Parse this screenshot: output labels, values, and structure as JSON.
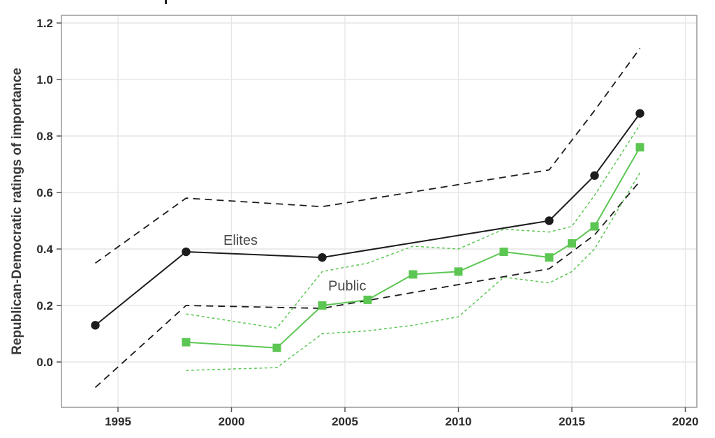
{
  "chart_data": {
    "type": "line",
    "title": "",
    "xlabel": "",
    "ylabel": "Republican-Democratic ratings of importance",
    "xlim": [
      1992.5,
      2020.5
    ],
    "ylim": [
      -0.163,
      1.227
    ],
    "grid": "on",
    "legend": "inline-labels",
    "xticks": [
      {
        "v": 1995,
        "label": "1995"
      },
      {
        "v": 2000,
        "label": "2000"
      },
      {
        "v": 2005,
        "label": "2005"
      },
      {
        "v": 2010,
        "label": "2010"
      },
      {
        "v": 2015,
        "label": "2015"
      },
      {
        "v": 2020,
        "label": "2020"
      }
    ],
    "yticks": [
      {
        "v": 0.0,
        "label": "0.0"
      },
      {
        "v": 0.2,
        "label": "0.2"
      },
      {
        "v": 0.4,
        "label": "0.4"
      },
      {
        "v": 0.6,
        "label": "0.6"
      },
      {
        "v": 0.8,
        "label": "0.8"
      },
      {
        "v": 1.0,
        "label": "1.0"
      },
      {
        "v": 1.2,
        "label": "1.2"
      }
    ],
    "colors": {
      "elites": "#1c1c1c",
      "public": "#5cc653",
      "grid": "#e6e6e6",
      "frame": "#999999",
      "tick": "#555555",
      "tick_label": "#2a2a2a",
      "annotation": "#4a4a4a"
    },
    "series": [
      {
        "id": "elites",
        "name": "Elites",
        "role": "mean",
        "marker": "circle",
        "dash": "solid",
        "width": 2,
        "color": "#1c1c1c",
        "x": [
          1994,
          1998,
          2004,
          2014,
          2016,
          2018
        ],
        "y": [
          0.13,
          0.39,
          0.37,
          0.5,
          0.66,
          0.88
        ]
      },
      {
        "id": "elites-upper-ci",
        "name": "Elites upper confidence band",
        "role": "ci",
        "marker": "none",
        "dash": "10 7",
        "width": 1.8,
        "color": "#1c1c1c",
        "x": [
          1994,
          1998,
          2004,
          2014,
          2016,
          2018
        ],
        "y": [
          0.35,
          0.58,
          0.55,
          0.68,
          0.89,
          1.11
        ]
      },
      {
        "id": "elites-lower-ci",
        "name": "Elites lower confidence band",
        "role": "ci",
        "marker": "none",
        "dash": "10 7",
        "width": 1.8,
        "color": "#1c1c1c",
        "x": [
          1994,
          1998,
          2004,
          2014,
          2016,
          2018
        ],
        "y": [
          -0.09,
          0.2,
          0.19,
          0.33,
          0.45,
          0.64
        ]
      },
      {
        "id": "public",
        "name": "Public",
        "role": "mean",
        "marker": "square",
        "dash": "solid",
        "width": 2,
        "color": "#5cc653",
        "x": [
          1998,
          2002,
          2004,
          2006,
          2008,
          2010,
          2012,
          2014,
          2015,
          2016,
          2018
        ],
        "y": [
          0.07,
          0.05,
          0.2,
          0.22,
          0.31,
          0.32,
          0.39,
          0.37,
          0.42,
          0.48,
          0.76
        ]
      },
      {
        "id": "public-upper-ci",
        "name": "Public upper confidence band",
        "role": "ci",
        "marker": "none",
        "dash": "4 3.5",
        "width": 1.5,
        "color": "#5cc653",
        "x": [
          1998,
          2002,
          2004,
          2006,
          2008,
          2010,
          2012,
          2014,
          2015,
          2016,
          2018
        ],
        "y": [
          0.17,
          0.12,
          0.32,
          0.35,
          0.41,
          0.4,
          0.47,
          0.46,
          0.48,
          0.59,
          0.84
        ]
      },
      {
        "id": "public-lower-ci",
        "name": "Public lower confidence band",
        "role": "ci",
        "marker": "none",
        "dash": "4 3.5",
        "width": 1.5,
        "color": "#5cc653",
        "x": [
          1998,
          2002,
          2004,
          2006,
          2008,
          2010,
          2012,
          2014,
          2015,
          2016,
          2018
        ],
        "y": [
          -0.03,
          -0.02,
          0.1,
          0.11,
          0.13,
          0.16,
          0.3,
          0.28,
          0.32,
          0.4,
          0.67
        ]
      }
    ],
    "annotations": [
      {
        "id": "elites",
        "text": "Elites",
        "x": 2000.4,
        "y": 0.432
      },
      {
        "id": "public",
        "text": "Public",
        "x": 2005.1,
        "y": 0.27
      }
    ]
  }
}
